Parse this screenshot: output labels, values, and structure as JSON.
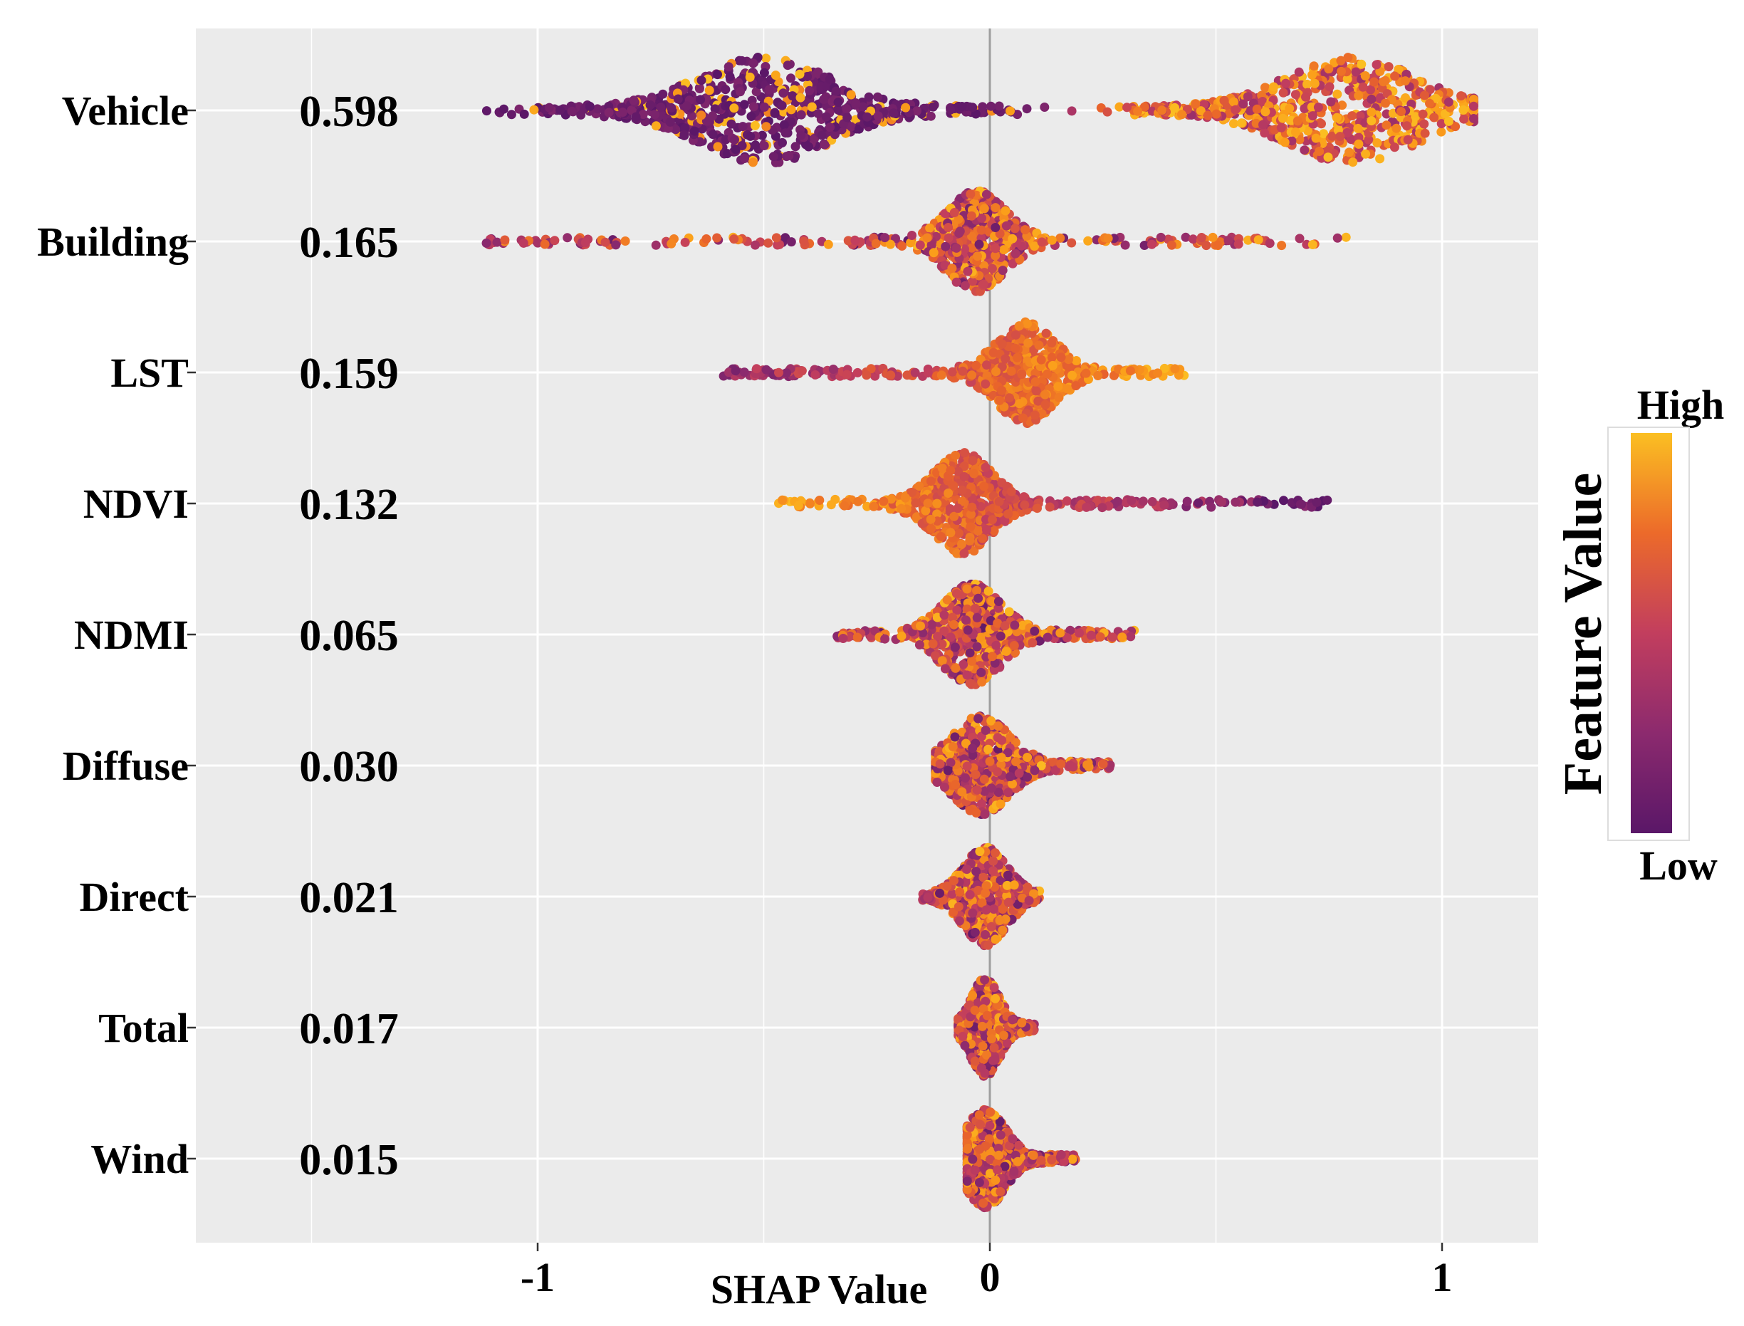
{
  "chart_data": {
    "type": "scatter",
    "subtype": "shap-beeswarm-summary",
    "xlabel": "SHAP Value",
    "xlim": [
      -1.75,
      1.2
    ],
    "x_ticks": [
      -1,
      0,
      1
    ],
    "x_tick_labels": [
      "-1",
      "0",
      "1"
    ],
    "features": [
      {
        "name": "Vehicle",
        "mean_abs_shap": "0.598",
        "min": -1.22,
        "max": 1.07,
        "center": 0.0
      },
      {
        "name": "Building",
        "mean_abs_shap": "0.165",
        "min": -1.12,
        "max": 0.79,
        "center": -0.03
      },
      {
        "name": "LST",
        "mean_abs_shap": "0.159",
        "min": -0.6,
        "max": 0.43,
        "center": 0.08
      },
      {
        "name": "NDVI",
        "mean_abs_shap": "0.132",
        "min": -0.47,
        "max": 0.75,
        "center": -0.06
      },
      {
        "name": "NDMI",
        "mean_abs_shap": "0.065",
        "min": -0.34,
        "max": 0.32,
        "center": -0.04
      },
      {
        "name": "Diffuse",
        "mean_abs_shap": "0.030",
        "min": -0.12,
        "max": 0.27,
        "center": -0.02
      },
      {
        "name": "Direct",
        "mean_abs_shap": "0.021",
        "min": -0.15,
        "max": 0.11,
        "center": -0.01
      },
      {
        "name": "Total",
        "mean_abs_shap": "0.017",
        "min": -0.07,
        "max": 0.1,
        "center": -0.01
      },
      {
        "name": "Wind",
        "mean_abs_shap": "0.015",
        "min": -0.05,
        "max": 0.19,
        "center": -0.01
      }
    ],
    "legend": {
      "title": "Feature Value",
      "high_label": "High",
      "low_label": "Low",
      "position": "right",
      "gradient_colors": [
        "#5a1768",
        "#8c2a6e",
        "#c23e5e",
        "#e8622c",
        "#fb9d1a",
        "#fbbf22"
      ]
    },
    "colors": {
      "panel_background": "#ebebeb",
      "grid": "#ffffff",
      "zero_line": "#9e9e9e",
      "low": "#5a1768",
      "high": "#fbbf22"
    }
  }
}
